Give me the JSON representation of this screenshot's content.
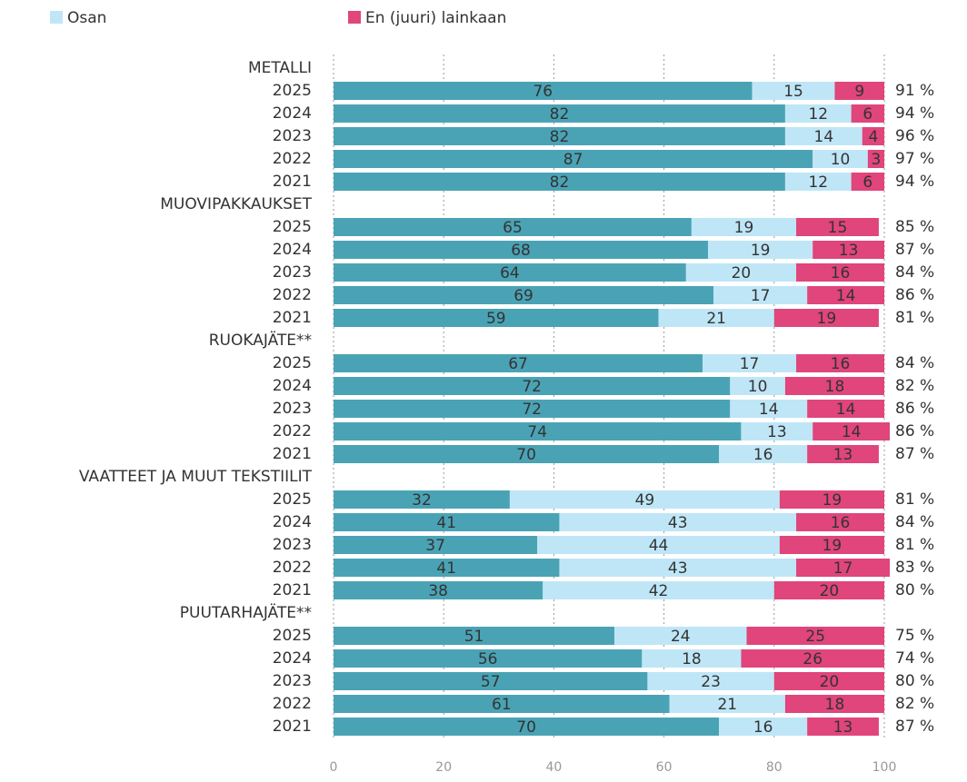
{
  "chart_data": {
    "type": "stacked-barh",
    "categories": [
      "METALLI",
      "2025",
      "2024",
      "2023",
      "2022",
      "2021",
      "MUOVIPAKKAUKSET",
      "2025",
      "2024",
      "2023",
      "2022",
      "2021",
      "RUOKAJÄTE**",
      "2025",
      "2024",
      "2023",
      "2022",
      "2021",
      "VAATTEET JA MUUT TEKSTIILIT",
      "2025",
      "2024",
      "2023",
      "2022",
      "2021",
      "PUUTARHAJÄTE**",
      "2025",
      "2024",
      "2023",
      "2022",
      "2021"
    ],
    "series": [
      {
        "color": "#4aa3b5",
        "values": [
          null,
          76,
          82,
          82,
          87,
          82,
          null,
          65,
          68,
          64,
          69,
          59,
          null,
          67,
          72,
          72,
          74,
          70,
          null,
          32,
          41,
          37,
          41,
          38,
          null,
          51,
          56,
          57,
          61,
          70
        ]
      },
      {
        "name": "Osan",
        "color": "#bfe6f7",
        "values": [
          null,
          15,
          12,
          14,
          10,
          12,
          null,
          19,
          19,
          20,
          17,
          21,
          null,
          17,
          10,
          14,
          13,
          16,
          null,
          49,
          43,
          44,
          43,
          42,
          null,
          24,
          18,
          23,
          21,
          16
        ]
      },
      {
        "name": "En (juuri) lainkaan",
        "color": "#e0457b",
        "values": [
          null,
          9,
          6,
          4,
          3,
          6,
          null,
          15,
          13,
          16,
          14,
          19,
          null,
          16,
          18,
          14,
          14,
          13,
          null,
          19,
          16,
          19,
          17,
          20,
          null,
          25,
          26,
          20,
          18,
          13
        ]
      }
    ],
    "totals": {
      "values": [
        null,
        91,
        94,
        96,
        97,
        94,
        null,
        85,
        87,
        84,
        86,
        81,
        null,
        84,
        82,
        86,
        86,
        87,
        null,
        81,
        84,
        81,
        83,
        80,
        null,
        75,
        74,
        80,
        82,
        87
      ],
      "value_labels": [
        null,
        "91 %",
        "94 %",
        "96 %",
        "97 %",
        "94 %",
        null,
        "85 %",
        "87 %",
        "84 %",
        "86 %",
        "81 %",
        null,
        "84 %",
        "82 %",
        "86 %",
        "86 %",
        "87 %",
        null,
        "81 %",
        "84 %",
        "81 %",
        "83 %",
        "80 %",
        null,
        "75 %",
        "74 %",
        "80 %",
        "82 %",
        "87 %"
      ]
    },
    "xlim": [
      0,
      100
    ],
    "xticks": [
      0,
      20,
      40,
      60,
      80,
      100
    ],
    "grid": true
  }
}
